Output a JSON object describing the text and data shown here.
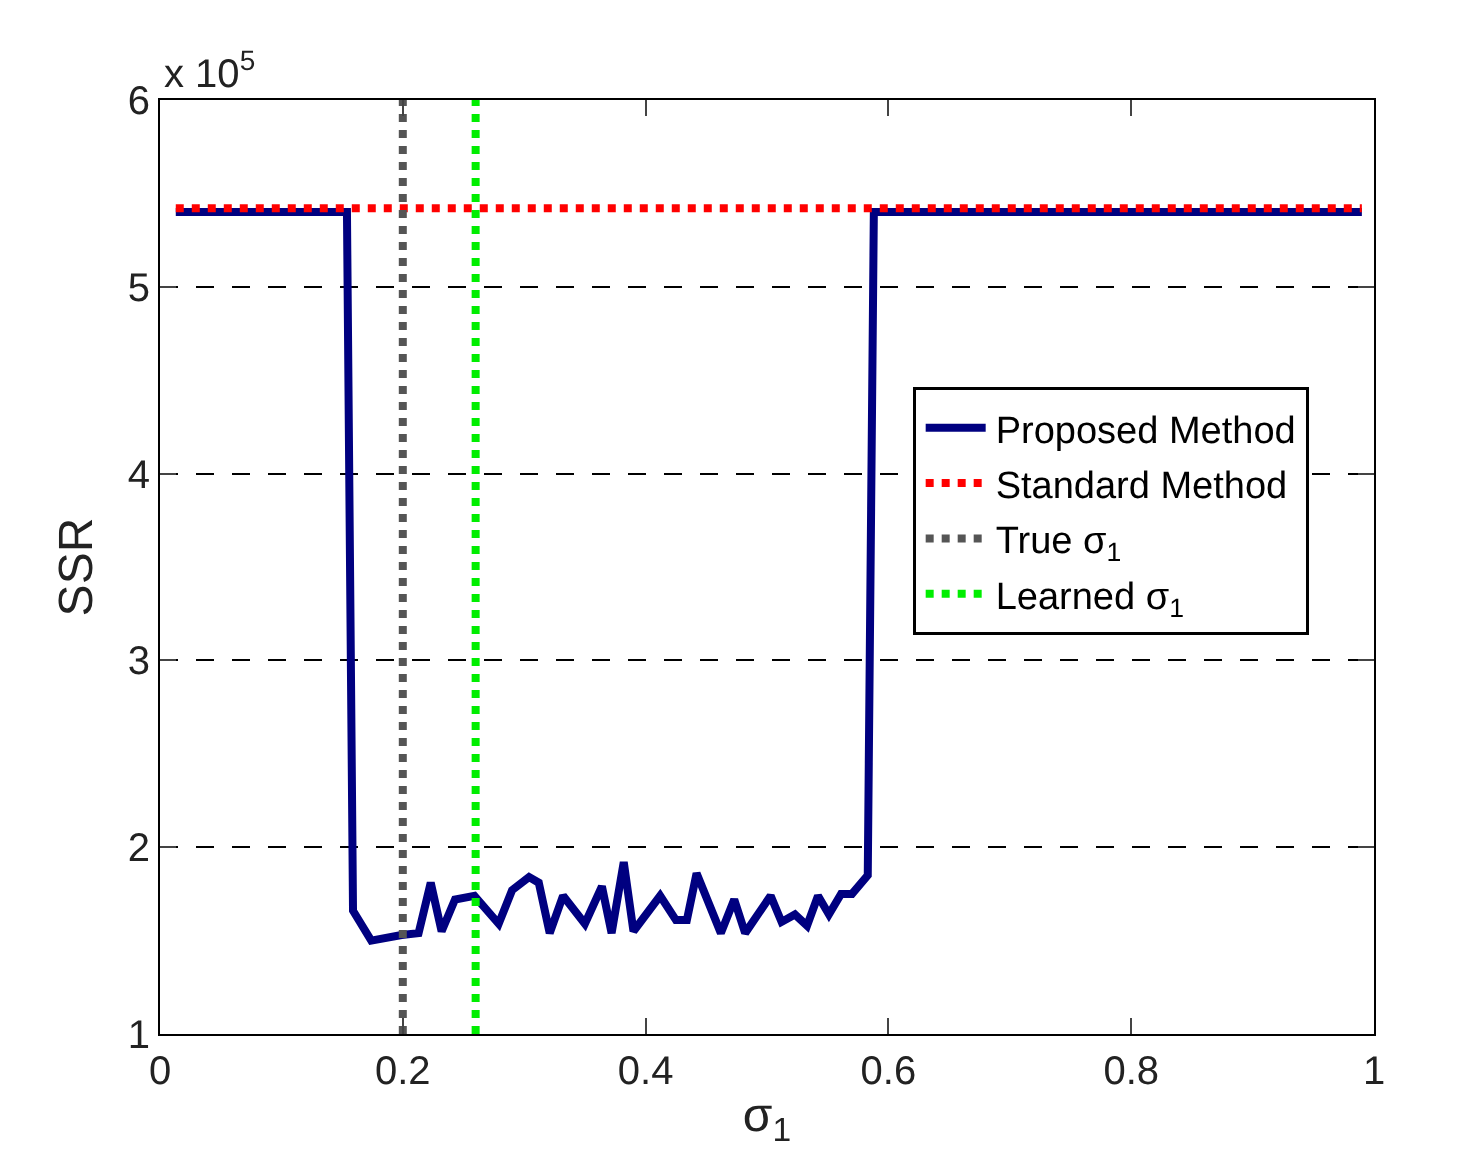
{
  "chart_data": {
    "type": "line",
    "xlabel": "σ$_{1}$",
    "ylabel": "SSR",
    "annotations": [
      "x 10$^{5}$"
    ],
    "xlim": [
      0,
      1
    ],
    "xticks": [
      0,
      0.2,
      0.4,
      0.6,
      0.8,
      1
    ],
    "ylim": [
      1,
      6
    ],
    "yticks": [
      1,
      2,
      3,
      4,
      5,
      6
    ],
    "grid": "y",
    "legend": "right",
    "series": [
      {
        "name": "Proposed Method",
        "color": "#000080",
        "line_style": "solid",
        "x": [
          0.013,
          0.154,
          0.159,
          0.174,
          0.199,
          0.213,
          0.223,
          0.232,
          0.243,
          0.259,
          0.279,
          0.29,
          0.304,
          0.312,
          0.321,
          0.332,
          0.35,
          0.364,
          0.372,
          0.382,
          0.39,
          0.412,
          0.425,
          0.434,
          0.442,
          0.462,
          0.473,
          0.482,
          0.503,
          0.512,
          0.523,
          0.533,
          0.542,
          0.551,
          0.561,
          0.57,
          0.583,
          0.588,
          0.99
        ],
        "values": [
          5.4,
          5.4,
          1.66,
          1.5,
          1.53,
          1.54,
          1.81,
          1.55,
          1.72,
          1.74,
          1.59,
          1.77,
          1.84,
          1.81,
          1.54,
          1.74,
          1.59,
          1.79,
          1.54,
          1.92,
          1.55,
          1.74,
          1.61,
          1.61,
          1.86,
          1.54,
          1.72,
          1.54,
          1.74,
          1.6,
          1.64,
          1.58,
          1.74,
          1.64,
          1.75,
          1.75,
          1.85,
          5.4,
          5.4
        ]
      },
      {
        "name": "Standard Method",
        "color": "#ff0000",
        "line_style": "dotted",
        "x": [
          0.013,
          0.99
        ],
        "values": [
          5.42,
          5.42
        ]
      },
      {
        "name": "True σ$_{1}$",
        "color": "#555555",
        "line_style": "dotted",
        "x": [
          0.2,
          0.2
        ],
        "values": [
          1,
          6
        ]
      },
      {
        "name": "Learned σ$_{1}$",
        "color": "#00ee00",
        "line_style": "dotted",
        "x": [
          0.26,
          0.26
        ],
        "values": [
          1,
          6
        ]
      }
    ]
  }
}
